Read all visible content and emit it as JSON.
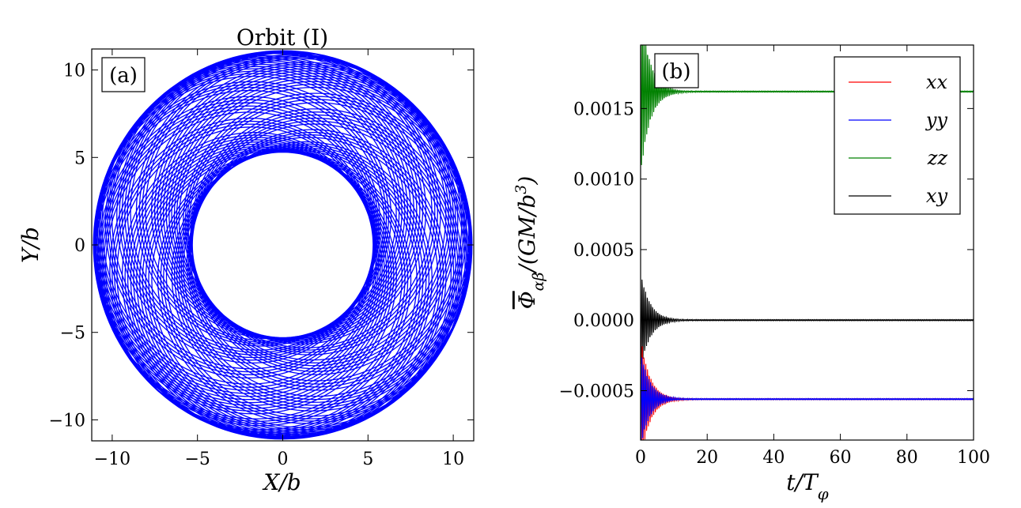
{
  "chart_data": [
    {
      "panel": "(a)",
      "type": "line",
      "title": "Orbit (I)",
      "xlabel": "X/b",
      "ylabel": "Y/b",
      "xlim": [
        -11.2,
        11.2
      ],
      "ylim": [
        -11.2,
        11.2
      ],
      "xticks": [
        -10,
        -5,
        0,
        5,
        10
      ],
      "yticks": [
        -10,
        -5,
        0,
        5,
        10
      ],
      "xtick_labels": [
        "−10",
        "−5",
        "0",
        "5",
        "10"
      ],
      "ytick_labels": [
        "−10",
        "−5",
        "0",
        "5",
        "10"
      ],
      "series": [
        {
          "name": "orbit",
          "color": "#0000ff",
          "r_min": 5.3,
          "r_max": 11.1,
          "periods": 60
        }
      ]
    },
    {
      "panel": "(b)",
      "type": "line",
      "xlabel": "t/T_φ",
      "ylabel": "Φ̄_αβ/(GM/b³)",
      "xlim": [
        0,
        100
      ],
      "ylim": [
        -0.00085,
        0.00195
      ],
      "xticks": [
        0,
        20,
        40,
        60,
        80,
        100
      ],
      "yticks": [
        -0.0005,
        0.0,
        0.0005,
        0.001,
        0.0015
      ],
      "xtick_labels": [
        "0",
        "20",
        "40",
        "60",
        "80",
        "100"
      ],
      "ytick_labels": [
        "−0.0005",
        "0.0000",
        "0.0005",
        "0.0010",
        "0.0015"
      ],
      "legend": "top-right",
      "series": [
        {
          "name": "xx",
          "color": "#ff0000",
          "final_value": -0.00056
        },
        {
          "name": "yy",
          "color": "#0000ff",
          "final_value": -0.00056
        },
        {
          "name": "zz",
          "color": "#008000",
          "final_value": 0.00162
        },
        {
          "name": "xy",
          "color": "#000000",
          "final_value": 0.0
        }
      ]
    }
  ]
}
